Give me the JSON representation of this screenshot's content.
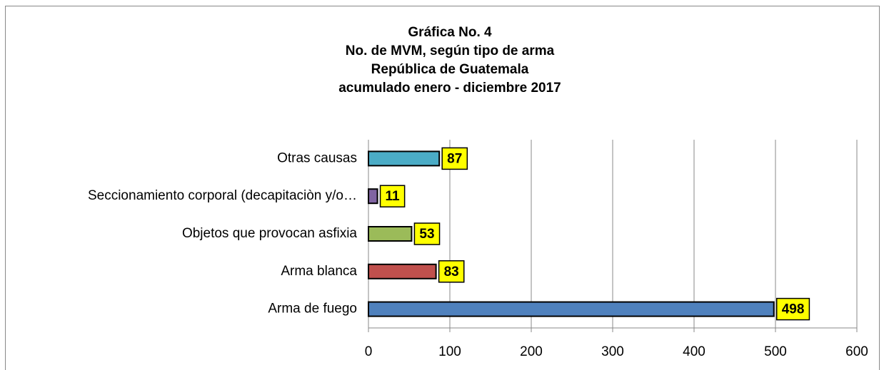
{
  "chart_data": {
    "type": "bar",
    "orientation": "horizontal",
    "title": [
      "Gráfica No. 4",
      "No. de MVM, según tipo de arma",
      "República de Guatemala",
      "acumulado enero - diciembre 2017"
    ],
    "categories": [
      "Otras causas",
      "Seccionamiento corporal (decapitaciòn y/o…",
      "Objetos que provocan asfixia",
      "Arma blanca",
      "Arma de fuego"
    ],
    "values": [
      87,
      11,
      53,
      83,
      498
    ],
    "colors": [
      "#4bacc6",
      "#8064a2",
      "#9bbb59",
      "#c0504d",
      "#4f81bd"
    ],
    "xlim": [
      0,
      600
    ],
    "xticks": [
      0,
      100,
      200,
      300,
      400,
      500,
      600
    ],
    "grid": true
  }
}
